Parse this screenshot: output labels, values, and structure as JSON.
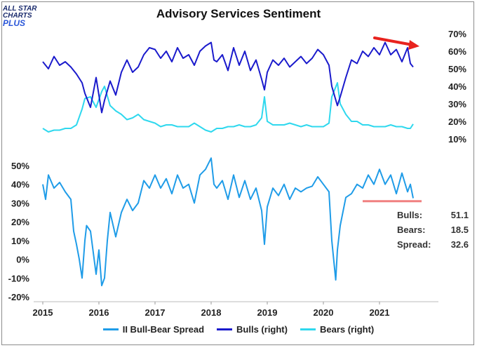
{
  "title": "Advisory Services Sentiment",
  "logo": {
    "line1": "ALL STAR",
    "line2": "CHARTS",
    "line3": "PLUS"
  },
  "stats": [
    {
      "label": "Bulls:",
      "value": "51.1"
    },
    {
      "label": "Bears:",
      "value": "18.5"
    },
    {
      "label": "Spread:",
      "value": "32.6"
    }
  ],
  "legend": [
    {
      "label": "II Bull-Bear Spread",
      "color": "#1f9ce8"
    },
    {
      "label": "Bulls (right)",
      "color": "#1a1acc"
    },
    {
      "label": "Bears (right)",
      "color": "#2fd8ee"
    }
  ],
  "chart_data": [
    {
      "type": "line",
      "title": "Advisory Services Sentiment",
      "axis_side": "right",
      "ylim": [
        10,
        70
      ],
      "yticks": [
        "10%",
        "20%",
        "30%",
        "40%",
        "50%",
        "60%",
        "70%"
      ],
      "x_unit": "year",
      "series": [
        {
          "name": "Bulls (right)",
          "color": "#1a1acc",
          "x": [
            2015.0,
            2015.1,
            2015.2,
            2015.3,
            2015.4,
            2015.5,
            2015.6,
            2015.7,
            2015.75,
            2015.85,
            2015.95,
            2016.05,
            2016.1,
            2016.2,
            2016.3,
            2016.4,
            2016.5,
            2016.6,
            2016.7,
            2016.8,
            2016.9,
            2017.0,
            2017.1,
            2017.2,
            2017.3,
            2017.4,
            2017.5,
            2017.6,
            2017.7,
            2017.8,
            2017.9,
            2018.0,
            2018.05,
            2018.1,
            2018.2,
            2018.3,
            2018.4,
            2018.5,
            2018.6,
            2018.7,
            2018.8,
            2018.9,
            2018.95,
            2019.0,
            2019.1,
            2019.2,
            2019.3,
            2019.4,
            2019.5,
            2019.6,
            2019.7,
            2019.8,
            2019.9,
            2020.0,
            2020.1,
            2020.15,
            2020.25,
            2020.3,
            2020.4,
            2020.5,
            2020.6,
            2020.7,
            2020.8,
            2020.9,
            2021.0,
            2021.1,
            2021.2,
            2021.3,
            2021.4,
            2021.5,
            2021.55,
            2021.6
          ],
          "values": [
            54,
            50,
            57,
            52,
            54,
            51,
            47,
            42,
            36,
            28,
            45,
            25,
            32,
            43,
            35,
            48,
            55,
            48,
            51,
            58,
            62,
            61,
            56,
            60,
            54,
            62,
            56,
            58,
            52,
            60,
            63,
            65,
            55,
            54,
            58,
            49,
            62,
            52,
            60,
            49,
            55,
            44,
            38,
            48,
            55,
            52,
            56,
            51,
            54,
            57,
            53,
            56,
            61,
            58,
            52,
            40,
            29,
            34,
            45,
            55,
            53,
            60,
            57,
            62,
            58,
            65,
            58,
            61,
            54,
            62,
            53,
            51
          ]
        },
        {
          "name": "Bears (right)",
          "color": "#2fd8ee",
          "x": [
            2015.0,
            2015.1,
            2015.2,
            2015.3,
            2015.4,
            2015.5,
            2015.6,
            2015.7,
            2015.75,
            2015.85,
            2015.95,
            2016.05,
            2016.1,
            2016.2,
            2016.3,
            2016.4,
            2016.5,
            2016.6,
            2016.7,
            2016.8,
            2016.9,
            2017.0,
            2017.1,
            2017.2,
            2017.3,
            2017.4,
            2017.5,
            2017.6,
            2017.7,
            2017.8,
            2017.9,
            2018.0,
            2018.05,
            2018.1,
            2018.2,
            2018.3,
            2018.4,
            2018.5,
            2018.6,
            2018.7,
            2018.8,
            2018.9,
            2018.95,
            2019.0,
            2019.1,
            2019.2,
            2019.3,
            2019.4,
            2019.5,
            2019.6,
            2019.7,
            2019.8,
            2019.9,
            2020.0,
            2020.1,
            2020.15,
            2020.25,
            2020.3,
            2020.4,
            2020.5,
            2020.6,
            2020.7,
            2020.8,
            2020.9,
            2021.0,
            2021.1,
            2021.2,
            2021.3,
            2021.4,
            2021.5,
            2021.55,
            2021.6
          ],
          "values": [
            16,
            14,
            15,
            15,
            16,
            16,
            18,
            27,
            33,
            34,
            28,
            37,
            40,
            29,
            26,
            24,
            21,
            22,
            24,
            21,
            20,
            19,
            17,
            18,
            18,
            17,
            17,
            17,
            19,
            17,
            15,
            14,
            15,
            16,
            16,
            17,
            17,
            18,
            17,
            17,
            18,
            22,
            34,
            20,
            18,
            18,
            18,
            19,
            18,
            17,
            18,
            17,
            17,
            17,
            19,
            34,
            42,
            30,
            24,
            20,
            20,
            18,
            18,
            17,
            17,
            17,
            18,
            17,
            17,
            16,
            16,
            18.5
          ]
        }
      ]
    },
    {
      "type": "line",
      "axis_side": "left",
      "ylim": [
        -20,
        50
      ],
      "yticks": [
        "-20%",
        "-10%",
        "0%",
        "10%",
        "20%",
        "30%",
        "40%",
        "50%"
      ],
      "xticks": [
        "2015",
        "2016",
        "2017",
        "2018",
        "2019",
        "2020",
        "2021"
      ],
      "series": [
        {
          "name": "II Bull-Bear Spread",
          "color": "#1f9ce8",
          "x": [
            2015.0,
            2015.05,
            2015.1,
            2015.2,
            2015.3,
            2015.4,
            2015.5,
            2015.55,
            2015.6,
            2015.65,
            2015.7,
            2015.75,
            2015.78,
            2015.85,
            2015.95,
            2016.0,
            2016.05,
            2016.1,
            2016.15,
            2016.2,
            2016.3,
            2016.4,
            2016.5,
            2016.6,
            2016.7,
            2016.8,
            2016.9,
            2017.0,
            2017.1,
            2017.2,
            2017.3,
            2017.4,
            2017.5,
            2017.6,
            2017.7,
            2017.8,
            2017.9,
            2018.0,
            2018.05,
            2018.1,
            2018.2,
            2018.3,
            2018.4,
            2018.5,
            2018.6,
            2018.7,
            2018.8,
            2018.9,
            2018.95,
            2019.0,
            2019.1,
            2019.2,
            2019.3,
            2019.4,
            2019.5,
            2019.6,
            2019.7,
            2019.8,
            2019.9,
            2020.0,
            2020.1,
            2020.15,
            2020.22,
            2020.25,
            2020.3,
            2020.4,
            2020.5,
            2020.6,
            2020.7,
            2020.8,
            2020.9,
            2021.0,
            2021.1,
            2021.2,
            2021.3,
            2021.4,
            2021.5,
            2021.55,
            2021.6
          ],
          "values": [
            40,
            32,
            45,
            38,
            41,
            36,
            32,
            15,
            8,
            0,
            -10,
            10,
            18,
            15,
            -8,
            5,
            -14,
            -10,
            10,
            25,
            12,
            25,
            32,
            26,
            30,
            42,
            38,
            45,
            38,
            43,
            35,
            45,
            38,
            40,
            30,
            45,
            48,
            54,
            40,
            38,
            42,
            32,
            45,
            33,
            42,
            32,
            38,
            26,
            8,
            28,
            38,
            34,
            40,
            32,
            38,
            36,
            38,
            39,
            44,
            40,
            36,
            10,
            -11,
            5,
            18,
            33,
            35,
            40,
            38,
            45,
            40,
            48,
            40,
            45,
            35,
            46,
            36,
            40,
            32.6
          ]
        }
      ],
      "reference_line": {
        "color": "#f08080",
        "value": 31,
        "x_start": 2020.7,
        "x_end": 2021.75
      }
    }
  ]
}
